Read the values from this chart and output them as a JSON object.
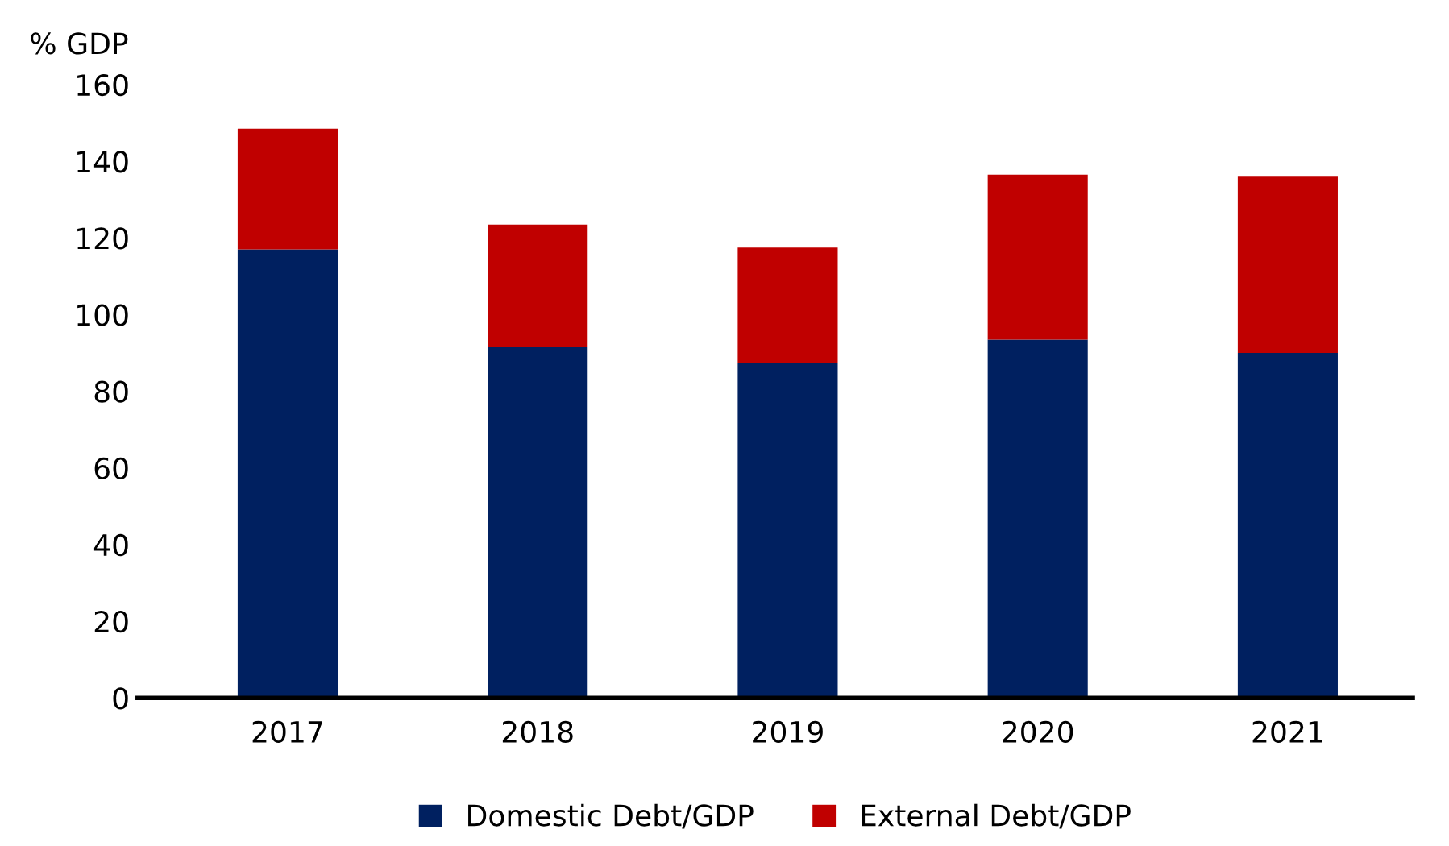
{
  "chart_data": {
    "type": "bar",
    "stacked": true,
    "ylabel": "% GDP",
    "categories": [
      "2017",
      "2018",
      "2019",
      "2020",
      "2021"
    ],
    "series": [
      {
        "name": "Domestic Debt/GDP",
        "color": "#002060",
        "values": [
          117,
          91.5,
          87.5,
          93.5,
          90
        ]
      },
      {
        "name": "External Debt/GDP",
        "color": "#c00000",
        "values": [
          31.5,
          32,
          30,
          43,
          46
        ]
      }
    ],
    "ylim": [
      0,
      160
    ],
    "yticks": [
      0,
      20,
      40,
      60,
      80,
      100,
      120,
      140,
      160
    ],
    "grid": false,
    "legend": "bottom"
  }
}
